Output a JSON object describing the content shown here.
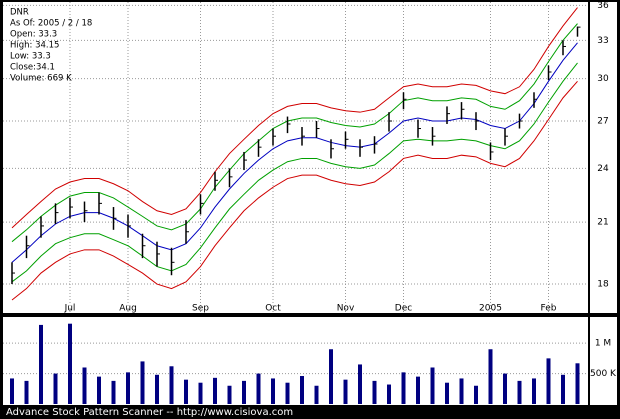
{
  "chart_data": [
    {
      "type": "ohlc",
      "info": [
        "DNR",
        "As Of: 2005 / 2 / 18",
        "Open: 33.3",
        "High: 34.15",
        "Low: 33.3",
        "Close:34.1",
        "Volume: 669 K"
      ],
      "categories": [
        null,
        null,
        null,
        null,
        "Jul",
        null,
        null,
        null,
        "Aug",
        null,
        null,
        null,
        null,
        "Sep",
        null,
        null,
        null,
        null,
        "Oct",
        null,
        null,
        null,
        null,
        "Nov",
        null,
        null,
        null,
        "Dec",
        null,
        null,
        null,
        null,
        null,
        "2005",
        null,
        null,
        null,
        "Feb",
        null,
        null
      ],
      "high": [
        19.0,
        20.3,
        21.3,
        22.0,
        22.3,
        22.1,
        22.6,
        21.8,
        21.4,
        20.4,
        20.0,
        19.7,
        21.1,
        22.5,
        23.8,
        24.0,
        25.0,
        25.8,
        26.5,
        27.3,
        26.6,
        27.0,
        25.8,
        26.3,
        25.8,
        26.0,
        27.6,
        29.0,
        27.1,
        26.6,
        28.0,
        28.3,
        27.6,
        25.6,
        26.5,
        27.5,
        29.0,
        31.0,
        33.0,
        34.15
      ],
      "low": [
        18.0,
        19.2,
        20.2,
        20.9,
        21.2,
        21.0,
        21.4,
        20.6,
        20.2,
        19.2,
        18.8,
        18.4,
        19.9,
        21.4,
        22.7,
        22.9,
        23.9,
        24.7,
        25.4,
        26.2,
        25.4,
        25.9,
        24.6,
        25.2,
        24.7,
        24.9,
        26.3,
        27.8,
        25.9,
        25.4,
        26.8,
        27.1,
        26.4,
        24.5,
        25.4,
        26.5,
        27.9,
        29.9,
        31.8,
        33.3
      ],
      "close": [
        18.5,
        19.8,
        20.8,
        21.5,
        21.8,
        21.6,
        22.0,
        21.2,
        20.8,
        19.8,
        19.4,
        19.0,
        20.5,
        22.0,
        23.3,
        23.5,
        24.5,
        25.3,
        26.0,
        26.8,
        26.0,
        26.5,
        25.2,
        25.8,
        25.3,
        25.5,
        27.0,
        28.5,
        26.5,
        26.0,
        27.5,
        27.8,
        27.0,
        25.0,
        26.0,
        27.0,
        28.5,
        30.5,
        32.5,
        34.1
      ],
      "color": "#000000",
      "series": [
        {
          "name": "Upper band 2",
          "color": "#d00000",
          "values": [
            20.7,
            21.4,
            22.1,
            22.8,
            23.2,
            23.4,
            23.4,
            23.1,
            22.7,
            22.1,
            21.6,
            21.4,
            21.7,
            22.6,
            23.8,
            24.9,
            25.8,
            26.7,
            27.5,
            28.0,
            28.2,
            28.2,
            27.9,
            27.7,
            27.6,
            27.8,
            28.6,
            29.4,
            29.6,
            29.4,
            29.4,
            29.6,
            29.5,
            29.1,
            28.9,
            29.4,
            30.7,
            32.5,
            34.2,
            35.8
          ]
        },
        {
          "name": "Upper band 1",
          "color": "#00a000",
          "values": [
            20.0,
            20.6,
            21.3,
            21.9,
            22.4,
            22.6,
            22.6,
            22.3,
            21.8,
            21.3,
            20.8,
            20.6,
            20.9,
            21.7,
            22.9,
            23.9,
            24.9,
            25.7,
            26.5,
            27.0,
            27.2,
            27.2,
            26.9,
            26.7,
            26.6,
            26.8,
            27.5,
            28.4,
            28.6,
            28.4,
            28.4,
            28.6,
            28.5,
            28.0,
            27.8,
            28.4,
            29.6,
            31.3,
            33.0,
            34.4
          ]
        },
        {
          "name": "Center",
          "color": "#0000c0",
          "values": [
            19.0,
            19.6,
            20.3,
            20.9,
            21.3,
            21.5,
            21.5,
            21.2,
            20.8,
            20.3,
            19.8,
            19.6,
            19.9,
            20.7,
            21.8,
            22.8,
            23.7,
            24.5,
            25.2,
            25.7,
            25.9,
            25.9,
            25.6,
            25.4,
            25.3,
            25.5,
            26.2,
            27.0,
            27.2,
            27.0,
            27.0,
            27.2,
            27.1,
            26.7,
            26.5,
            27.0,
            28.2,
            29.8,
            31.4,
            32.8
          ]
        },
        {
          "name": "Lower band 1",
          "color": "#00a000",
          "values": [
            18.1,
            18.6,
            19.3,
            19.9,
            20.2,
            20.4,
            20.4,
            20.1,
            19.8,
            19.3,
            18.8,
            18.6,
            18.9,
            19.7,
            20.7,
            21.7,
            22.5,
            23.3,
            23.9,
            24.4,
            24.6,
            24.6,
            24.3,
            24.1,
            24.0,
            24.2,
            24.9,
            25.7,
            25.8,
            25.7,
            25.7,
            25.8,
            25.7,
            25.4,
            25.2,
            25.7,
            26.8,
            28.3,
            29.8,
            31.2
          ]
        },
        {
          "name": "Lower band 2",
          "color": "#d00000",
          "values": [
            17.3,
            17.8,
            18.5,
            19.0,
            19.4,
            19.6,
            19.6,
            19.3,
            18.9,
            18.5,
            18.0,
            17.8,
            18.1,
            18.8,
            19.8,
            20.7,
            21.6,
            22.3,
            22.9,
            23.4,
            23.6,
            23.6,
            23.3,
            23.1,
            23.0,
            23.2,
            23.8,
            24.6,
            24.8,
            24.6,
            24.6,
            24.8,
            24.7,
            24.3,
            24.1,
            24.6,
            25.7,
            27.1,
            28.6,
            29.8
          ]
        }
      ],
      "log_scale": true,
      "grid": true,
      "ylim": [
        16.75,
        36.3
      ],
      "yticks": [
        18,
        21,
        24,
        27,
        30,
        33,
        36
      ]
    },
    {
      "type": "bar",
      "color": "#000080",
      "values": [
        420000,
        380000,
        1300000,
        500000,
        1320000,
        600000,
        450000,
        380000,
        520000,
        700000,
        480000,
        620000,
        400000,
        350000,
        430000,
        300000,
        380000,
        500000,
        420000,
        350000,
        460000,
        300000,
        900000,
        400000,
        650000,
        380000,
        320000,
        520000,
        450000,
        600000,
        350000,
        420000,
        300000,
        900000,
        500000,
        380000,
        420000,
        750000,
        480000,
        669000
      ],
      "ylim": [
        0,
        1430000
      ],
      "yticks": [
        {
          "value": 500000,
          "label": "500 K"
        },
        {
          "value": 1000000,
          "label": "1 M"
        }
      ]
    }
  ],
  "footer": "Advance Stock Pattern Scanner -- http://www.cisiova.com"
}
